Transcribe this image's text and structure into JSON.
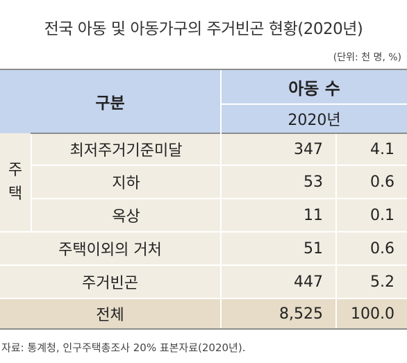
{
  "title": "전국 아동 및 아동가구의 주거빈곤 현황(2020년)",
  "unit": "(단위: 천 명, %)",
  "header": {
    "category": "구분",
    "group": "아동 수",
    "year": "2020년"
  },
  "housing_group_label": [
    "주",
    "택"
  ],
  "rows": [
    {
      "label": "최저주거기준미달",
      "count": "347",
      "pct": "4.1"
    },
    {
      "label": "지하",
      "count": "53",
      "pct": "0.6"
    },
    {
      "label": "옥상",
      "count": "11",
      "pct": "0.1"
    },
    {
      "label": "주택이외의 거처",
      "count": "51",
      "pct": "0.6"
    },
    {
      "label": "주거빈곤",
      "count": "447",
      "pct": "5.2"
    }
  ],
  "total": {
    "label": "전체",
    "count": "8,525",
    "pct": "100.0"
  },
  "source": "자료: 통계청, 인구주택총조사 20% 표본자료(2020년)."
}
